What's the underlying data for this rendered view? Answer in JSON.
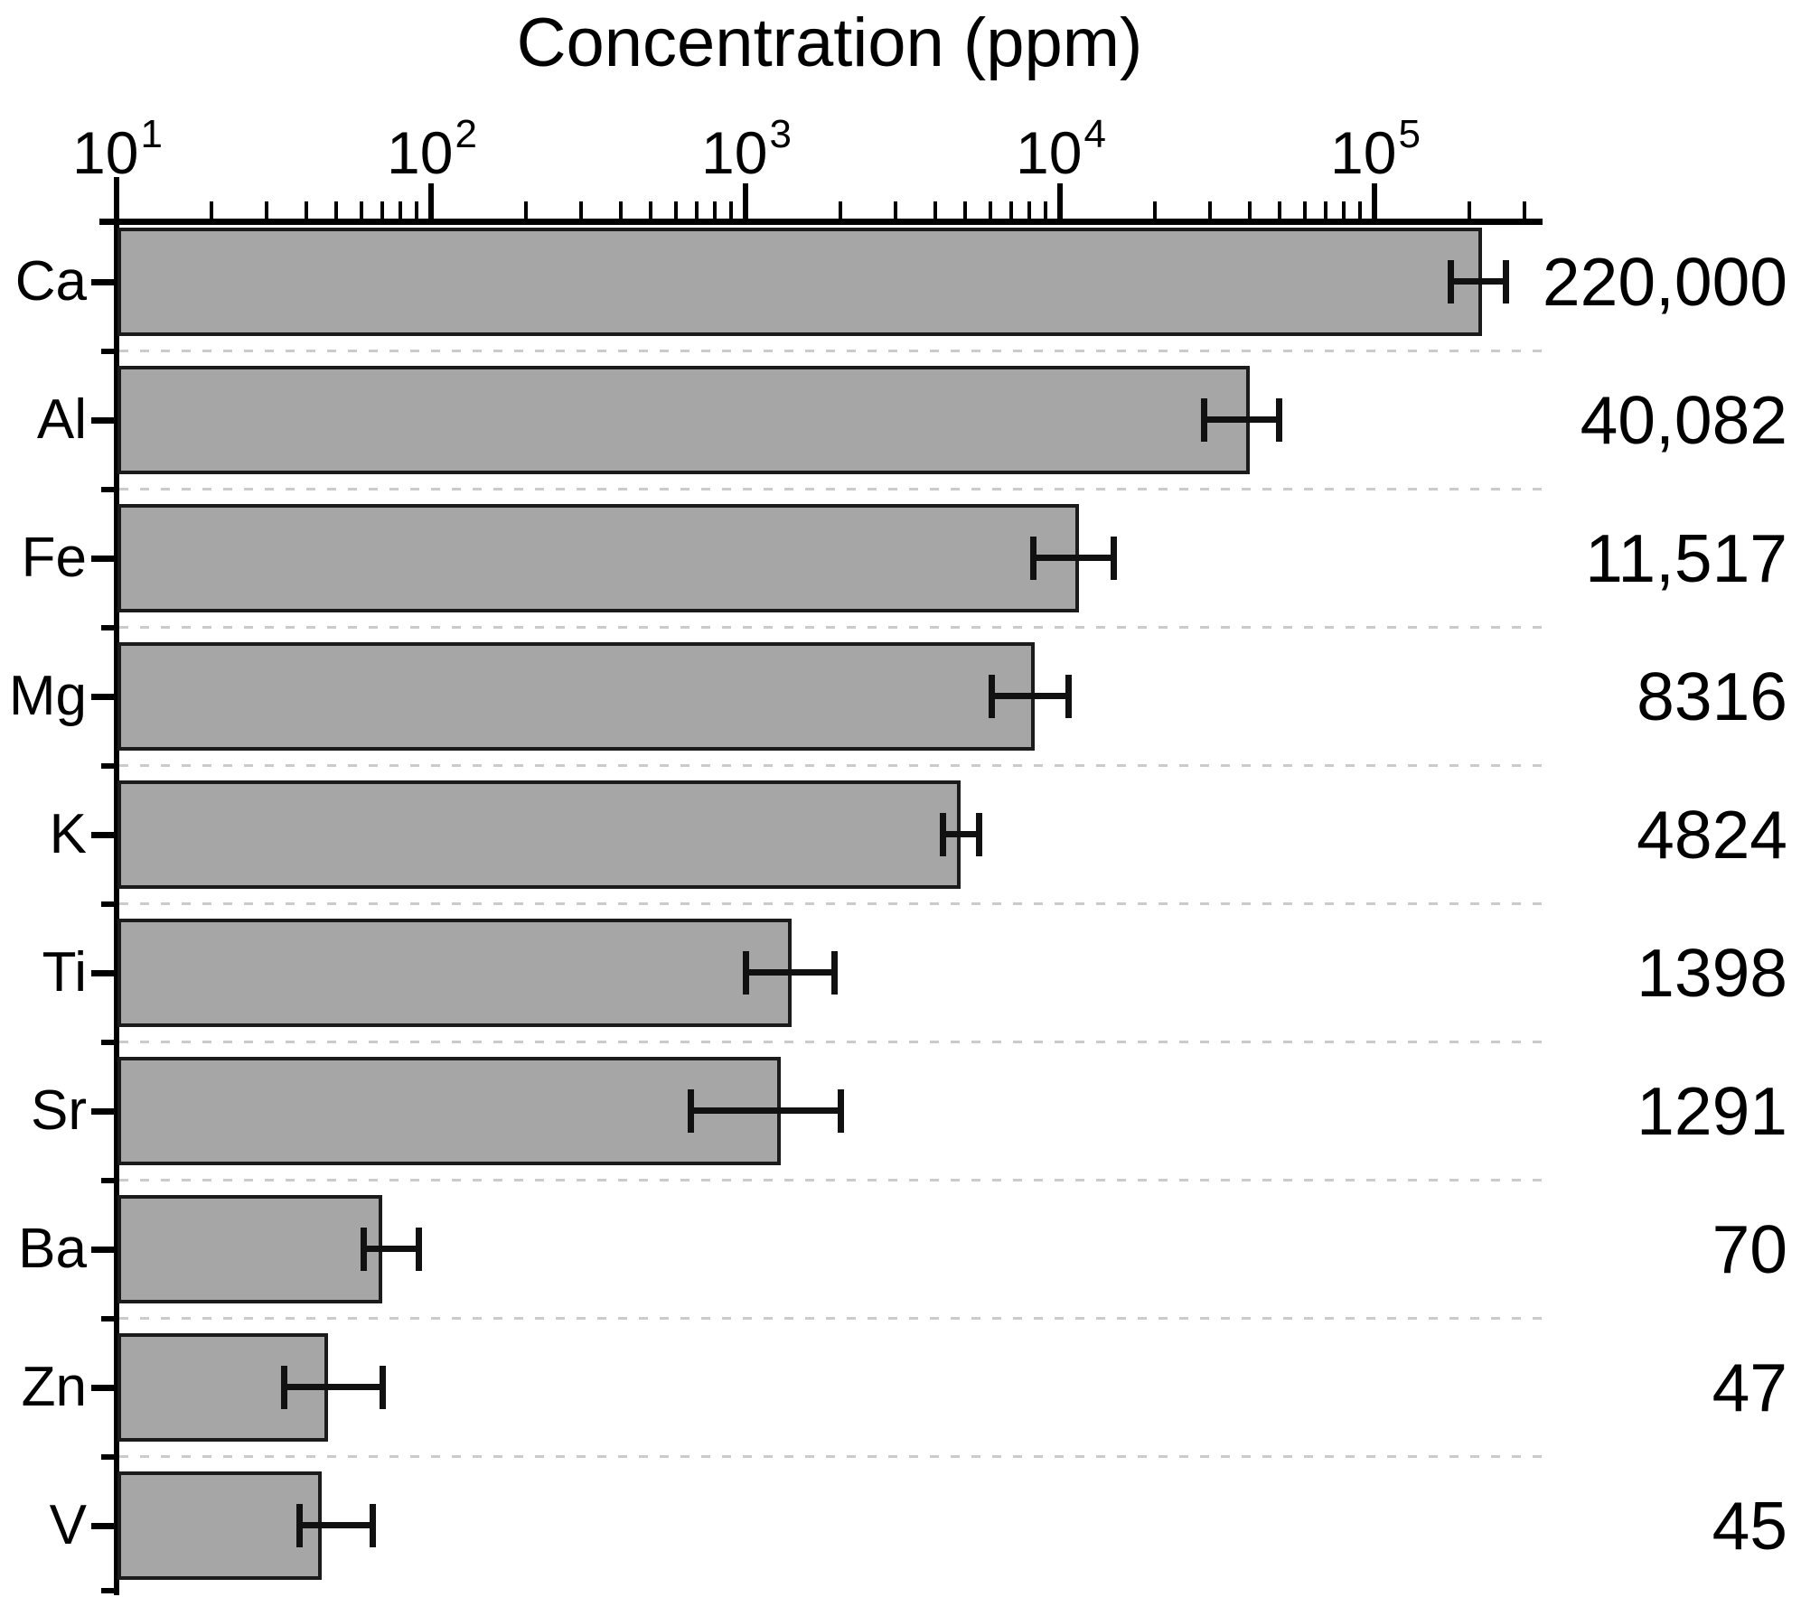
{
  "chart_data": {
    "type": "bar",
    "orientation": "horizontal",
    "title": "Concentration (ppm)",
    "x_axis_position": "top",
    "x_scale": "log",
    "xlim": [
      10,
      320000
    ],
    "x_tick_exponents": [
      1,
      2,
      3,
      4,
      5
    ],
    "x_tick_base": "10",
    "categories": [
      "Ca",
      "Al",
      "Fe",
      "Mg",
      "K",
      "Ti",
      "Sr",
      "Ba",
      "Zn",
      "V"
    ],
    "values": [
      220000,
      40082,
      11517,
      8316,
      4824,
      1398,
      1291,
      70,
      47,
      45
    ],
    "value_labels": [
      "220,000",
      "40,082",
      "11,517",
      "8316",
      "4824",
      "1398",
      "1291",
      "70",
      "47",
      "45"
    ],
    "error_low": [
      174000,
      28600,
      8200,
      6050,
      4230,
      1000,
      670,
      61,
      34,
      38
    ],
    "error_high": [
      261000,
      49500,
      14800,
      10600,
      5500,
      1910,
      2000,
      91,
      70,
      65
    ],
    "grid": "dashed horizontal separators between categories",
    "legend": "none",
    "colors": {
      "bar_fill": "#a6a6a6",
      "bar_border": "#1b1b1b",
      "error_bar": "#111111",
      "gridline": "#cbcbcb",
      "axis": "#000000",
      "text": "#000000"
    }
  }
}
